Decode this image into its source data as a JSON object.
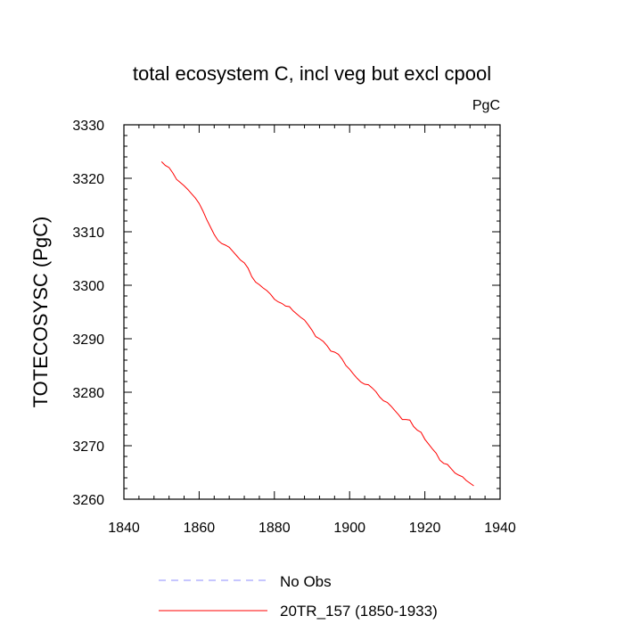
{
  "chart_data": {
    "type": "line",
    "title": "total ecosystem C, incl veg but excl cpool",
    "units_label": "PgC",
    "ylabel": "TOTECOSYSC  (PgC)",
    "xlabel": "",
    "xlim": [
      1840,
      1940
    ],
    "ylim": [
      3260,
      3330
    ],
    "x_ticks": [
      "1840",
      "1860",
      "1880",
      "1900",
      "1920",
      "1940"
    ],
    "y_ticks": [
      "3260",
      "3270",
      "3280",
      "3290",
      "3300",
      "3310",
      "3320",
      "3330"
    ],
    "grid": false,
    "legend_position": "bottom",
    "series": [
      {
        "name": "20TR_157 (1850-1933)",
        "color": "#ff0000",
        "style": "solid",
        "x": [
          1850,
          1851,
          1852,
          1853,
          1854,
          1855,
          1856,
          1857,
          1858,
          1859,
          1860,
          1861,
          1862,
          1863,
          1864,
          1865,
          1866,
          1867,
          1868,
          1869,
          1870,
          1871,
          1872,
          1873,
          1874,
          1875,
          1876,
          1877,
          1878,
          1879,
          1880,
          1881,
          1882,
          1883,
          1884,
          1885,
          1886,
          1887,
          1888,
          1889,
          1890,
          1891,
          1892,
          1893,
          1894,
          1895,
          1896,
          1897,
          1898,
          1899,
          1900,
          1901,
          1902,
          1903,
          1904,
          1905,
          1906,
          1907,
          1908,
          1909,
          1910,
          1911,
          1912,
          1913,
          1914,
          1915,
          1916,
          1917,
          1918,
          1919,
          1920,
          1921,
          1922,
          1923,
          1924,
          1925,
          1926,
          1927,
          1928,
          1929,
          1930,
          1931,
          1932,
          1933
        ],
        "y": [
          3323.1,
          3322.4,
          3322.0,
          3321.0,
          3319.8,
          3319.2,
          3318.6,
          3317.9,
          3317.1,
          3316.3,
          3315.3,
          3313.9,
          3312.3,
          3310.9,
          3309.5,
          3308.4,
          3307.8,
          3307.5,
          3307.1,
          3306.3,
          3305.5,
          3304.7,
          3304.2,
          3303.2,
          3301.6,
          3300.6,
          3300.1,
          3299.5,
          3299.0,
          3298.3,
          3297.4,
          3296.9,
          3296.6,
          3296.1,
          3296.0,
          3295.2,
          3294.6,
          3294.0,
          3293.5,
          3292.6,
          3291.6,
          3290.4,
          3290.0,
          3289.5,
          3288.7,
          3287.7,
          3287.5,
          3287.1,
          3286.2,
          3285.0,
          3284.3,
          3283.4,
          3282.6,
          3281.9,
          3281.5,
          3281.4,
          3280.8,
          3280.1,
          3279.1,
          3278.4,
          3278.1,
          3277.4,
          3276.6,
          3275.8,
          3274.9,
          3274.9,
          3274.8,
          3273.6,
          3272.9,
          3272.5,
          3271.2,
          3270.3,
          3269.4,
          3268.6,
          3267.3,
          3266.7,
          3266.5,
          3265.7,
          3264.9,
          3264.5,
          3264.2,
          3263.5,
          3263.0,
          3262.5
        ]
      },
      {
        "name": "No Obs",
        "color": "#8c8cff",
        "style": "dashed",
        "x": [],
        "y": []
      }
    ]
  }
}
